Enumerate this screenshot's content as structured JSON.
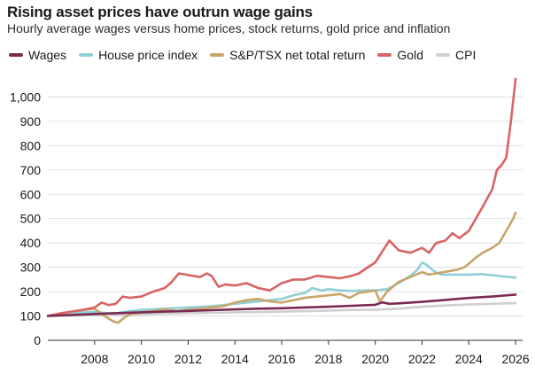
{
  "title": "Rising asset prices have outrun wage gains",
  "subtitle": "Hourly average wages versus home prices, stock returns, gold price and inflation",
  "chart_data": {
    "type": "line",
    "title": "Rising asset prices have outrun wage gains",
    "subtitle": "Hourly average wages versus home prices, stock returns, gold price and inflation",
    "xlabel": "",
    "ylabel": "",
    "xlim": [
      2006.0,
      2026.3
    ],
    "ylim": [
      0,
      1100
    ],
    "y_ticks": [
      0,
      100,
      200,
      300,
      400,
      500,
      600,
      700,
      800,
      900,
      1000
    ],
    "y_tick_labels": [
      "0",
      "100",
      "200",
      "300",
      "400",
      "500",
      "600",
      "700",
      "800",
      "900",
      "1,000"
    ],
    "x_ticks": [
      2008,
      2010,
      2012,
      2014,
      2016,
      2018,
      2020,
      2022,
      2024,
      2026
    ],
    "x_tick_labels": [
      "2008",
      "2010",
      "2012",
      "2014",
      "2016",
      "2018",
      "2020",
      "2022",
      "2024",
      "2026"
    ],
    "grid": true,
    "legend_position": "top",
    "series": [
      {
        "name": "Wages",
        "color": "#7a2b52",
        "x": [
          2006.0,
          2007.0,
          2008.0,
          2009.0,
          2010.0,
          2011.0,
          2012.0,
          2013.0,
          2014.0,
          2015.0,
          2016.0,
          2017.0,
          2018.0,
          2019.0,
          2020.0,
          2020.3,
          2020.6,
          2021.0,
          2022.0,
          2023.0,
          2024.0,
          2025.0,
          2025.5,
          2026.0
        ],
        "values": [
          100,
          104,
          108,
          112,
          115,
          118,
          121,
          124,
          127,
          130,
          132,
          135,
          138,
          142,
          146,
          156,
          150,
          152,
          158,
          166,
          174,
          180,
          184,
          188
        ]
      },
      {
        "name": "House price index",
        "color": "#8fd0d6",
        "x": [
          2006.0,
          2006.5,
          2007.0,
          2007.5,
          2008.0,
          2008.5,
          2009.0,
          2009.5,
          2010.0,
          2011.0,
          2012.0,
          2013.0,
          2014.0,
          2015.0,
          2016.0,
          2016.5,
          2017.0,
          2017.3,
          2017.7,
          2018.0,
          2018.5,
          2019.0,
          2019.5,
          2020.0,
          2020.5,
          2021.0,
          2021.5,
          2021.8,
          2022.0,
          2022.2,
          2022.5,
          2022.8,
          2023.0,
          2023.5,
          2024.0,
          2024.5,
          2025.0,
          2025.5,
          2026.0
        ],
        "values": [
          100,
          105,
          110,
          115,
          117,
          112,
          113,
          120,
          125,
          130,
          135,
          140,
          150,
          160,
          170,
          185,
          195,
          215,
          205,
          210,
          205,
          203,
          205,
          205,
          210,
          235,
          265,
          290,
          320,
          310,
          285,
          270,
          270,
          270,
          270,
          272,
          268,
          262,
          258
        ]
      },
      {
        "name": "S&P/TSX net total return",
        "color": "#c8a56a",
        "x": [
          2006.0,
          2006.5,
          2007.0,
          2007.5,
          2008.0,
          2008.5,
          2008.8,
          2009.0,
          2009.3,
          2009.6,
          2010.0,
          2010.5,
          2011.0,
          2011.5,
          2012.0,
          2012.5,
          2013.0,
          2013.5,
          2014.0,
          2014.5,
          2015.0,
          2015.5,
          2016.0,
          2016.5,
          2017.0,
          2017.5,
          2018.0,
          2018.5,
          2018.9,
          2019.3,
          2019.7,
          2020.0,
          2020.2,
          2020.5,
          2021.0,
          2021.5,
          2022.0,
          2022.3,
          2022.6,
          2022.9,
          2023.2,
          2023.5,
          2023.8,
          2024.0,
          2024.3,
          2024.6,
          2025.0,
          2025.3,
          2025.6,
          2025.9,
          2026.0
        ],
        "values": [
          100,
          110,
          118,
          125,
          130,
          95,
          78,
          72,
          95,
          110,
          115,
          120,
          128,
          120,
          125,
          130,
          135,
          140,
          155,
          165,
          170,
          160,
          155,
          165,
          175,
          180,
          185,
          190,
          175,
          195,
          200,
          205,
          160,
          200,
          240,
          260,
          280,
          270,
          275,
          280,
          285,
          290,
          300,
          315,
          340,
          360,
          380,
          400,
          450,
          500,
          525
        ]
      },
      {
        "name": "Gold",
        "color": "#d86464",
        "x": [
          2006.0,
          2006.5,
          2007.0,
          2007.5,
          2008.0,
          2008.3,
          2008.6,
          2008.9,
          2009.2,
          2009.5,
          2010.0,
          2010.5,
          2011.0,
          2011.3,
          2011.6,
          2011.9,
          2012.2,
          2012.5,
          2012.8,
          2013.0,
          2013.3,
          2013.6,
          2014.0,
          2014.5,
          2015.0,
          2015.5,
          2016.0,
          2016.5,
          2017.0,
          2017.5,
          2018.0,
          2018.5,
          2019.0,
          2019.3,
          2019.6,
          2020.0,
          2020.3,
          2020.6,
          2021.0,
          2021.5,
          2022.0,
          2022.3,
          2022.6,
          2023.0,
          2023.3,
          2023.6,
          2024.0,
          2024.3,
          2024.6,
          2025.0,
          2025.2,
          2025.4,
          2025.6,
          2025.8,
          2026.0
        ],
        "values": [
          100,
          110,
          118,
          125,
          135,
          155,
          145,
          150,
          180,
          175,
          180,
          200,
          215,
          240,
          275,
          270,
          265,
          260,
          275,
          265,
          220,
          230,
          225,
          235,
          215,
          205,
          235,
          250,
          250,
          265,
          260,
          255,
          265,
          275,
          295,
          320,
          365,
          410,
          370,
          360,
          380,
          360,
          400,
          410,
          440,
          420,
          450,
          500,
          550,
          620,
          700,
          720,
          750,
          900,
          1075
        ]
      },
      {
        "name": "CPI",
        "color": "#cfcfcf",
        "x": [
          2006.0,
          2007.0,
          2008.0,
          2009.0,
          2010.0,
          2011.0,
          2012.0,
          2013.0,
          2014.0,
          2015.0,
          2016.0,
          2017.0,
          2018.0,
          2019.0,
          2020.0,
          2021.0,
          2022.0,
          2023.0,
          2024.0,
          2025.0,
          2026.0
        ],
        "values": [
          100,
          102,
          104,
          105,
          107,
          110,
          112,
          113,
          115,
          116,
          118,
          120,
          122,
          125,
          126,
          130,
          138,
          143,
          147,
          150,
          153
        ]
      }
    ]
  }
}
